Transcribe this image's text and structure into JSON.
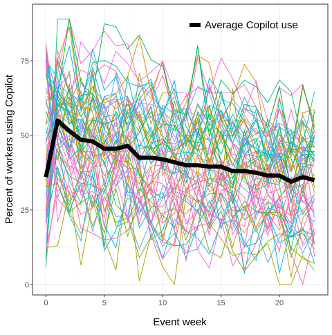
{
  "chart_data": {
    "type": "line",
    "xlabel": "Event week",
    "ylabel": "Percent of workers using Copilot",
    "xlim": [
      -1.15,
      24.15
    ],
    "ylim": [
      -3.5,
      94
    ],
    "x_ticks": [
      0,
      5,
      10,
      15,
      20
    ],
    "y_ticks": [
      0,
      25,
      50,
      75
    ],
    "grid": true,
    "legend": {
      "position": "top-right",
      "label": "Average Copilot use"
    },
    "average_series": {
      "name": "Average Copilot use",
      "color": "#000000",
      "x": [
        0,
        1,
        2,
        3,
        4,
        5,
        6,
        7,
        8,
        9,
        10,
        11,
        12,
        13,
        14,
        15,
        16,
        17,
        18,
        19,
        20,
        21,
        22,
        23
      ],
      "values": [
        36,
        55,
        51.5,
        48.5,
        48,
        45.5,
        45.5,
        46.5,
        42.5,
        42.5,
        42,
        41,
        40,
        40,
        39.5,
        39.5,
        38,
        38,
        37.5,
        36.5,
        36.5,
        34.5,
        36,
        35
      ]
    },
    "individual_series_count": 60,
    "individual_series_seed": 12345,
    "palette": [
      "#F8766D",
      "#E58700",
      "#C99800",
      "#A3A500",
      "#6BB100",
      "#00BA38",
      "#00BF7D",
      "#00C0AF",
      "#00BCD8",
      "#00B0F6",
      "#619CFF",
      "#B983FF",
      "#E76BF3",
      "#FD61D1",
      "#FF67A4"
    ]
  }
}
